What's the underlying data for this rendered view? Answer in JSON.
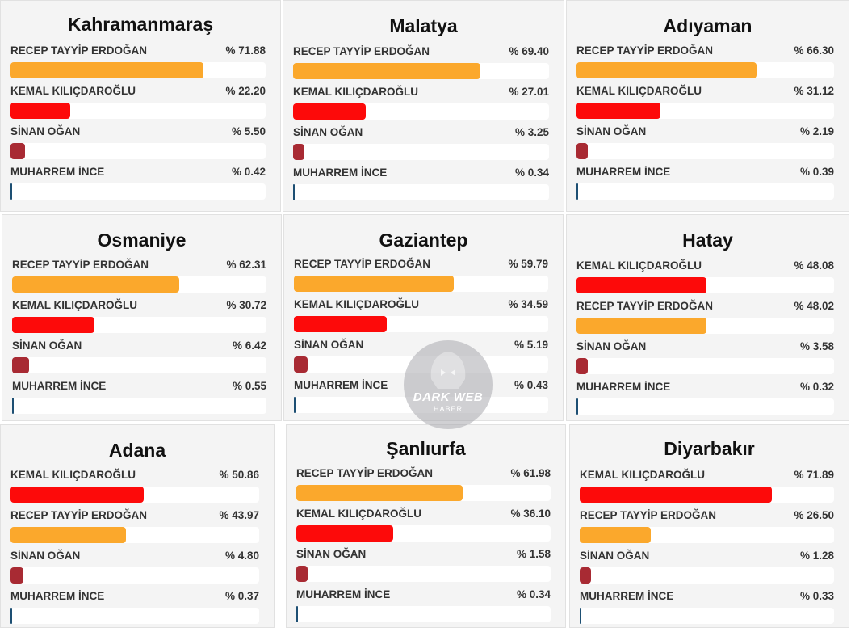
{
  "colors": {
    "RECEP TAYYİP ERDOĞAN": "#fba82c",
    "KEMAL KILIÇDAROĞLU": "#fd0a0a",
    "SİNAN OĞAN": "#a82a33",
    "MUHARREM İNCE": "#1d4f73"
  },
  "provinces": [
    {
      "name": "Kahramanmaraş",
      "rows": [
        {
          "candidate": "RECEP TAYYİP ERDOĞAN",
          "pct_label": "% 71.88",
          "value": 71.88
        },
        {
          "candidate": "KEMAL KILIÇDAROĞLU",
          "pct_label": "% 22.20",
          "value": 22.2
        },
        {
          "candidate": "SİNAN OĞAN",
          "pct_label": "% 5.50",
          "value": 5.5
        },
        {
          "candidate": "MUHARREM İNCE",
          "pct_label": "% 0.42",
          "value": 0.42
        }
      ]
    },
    {
      "name": "Malatya",
      "rows": [
        {
          "candidate": "RECEP TAYYİP ERDOĞAN",
          "pct_label": "% 69.40",
          "value": 69.4
        },
        {
          "candidate": "KEMAL KILIÇDAROĞLU",
          "pct_label": "% 27.01",
          "value": 27.01
        },
        {
          "candidate": "SİNAN OĞAN",
          "pct_label": "% 3.25",
          "value": 3.25
        },
        {
          "candidate": "MUHARREM İNCE",
          "pct_label": "% 0.34",
          "value": 0.34
        }
      ]
    },
    {
      "name": "Adıyaman",
      "rows": [
        {
          "candidate": "RECEP TAYYİP ERDOĞAN",
          "pct_label": "% 66.30",
          "value": 66.3
        },
        {
          "candidate": "KEMAL KILIÇDAROĞLU",
          "pct_label": "% 31.12",
          "value": 31.12
        },
        {
          "candidate": "SİNAN OĞAN",
          "pct_label": "% 2.19",
          "value": 2.19
        },
        {
          "candidate": "MUHARREM İNCE",
          "pct_label": "% 0.39",
          "value": 0.39
        }
      ]
    },
    {
      "name": "Osmaniye",
      "rows": [
        {
          "candidate": "RECEP TAYYİP ERDOĞAN",
          "pct_label": "% 62.31",
          "value": 62.31
        },
        {
          "candidate": "KEMAL KILIÇDAROĞLU",
          "pct_label": "% 30.72",
          "value": 30.72
        },
        {
          "candidate": "SİNAN OĞAN",
          "pct_label": "% 6.42",
          "value": 6.42
        },
        {
          "candidate": "MUHARREM İNCE",
          "pct_label": "% 0.55",
          "value": 0.55
        }
      ]
    },
    {
      "name": "Gaziantep",
      "rows": [
        {
          "candidate": "RECEP TAYYİP ERDOĞAN",
          "pct_label": "% 59.79",
          "value": 59.79
        },
        {
          "candidate": "KEMAL KILIÇDAROĞLU",
          "pct_label": "% 34.59",
          "value": 34.59
        },
        {
          "candidate": "SİNAN OĞAN",
          "pct_label": "% 5.19",
          "value": 5.19
        },
        {
          "candidate": "MUHARREM İNCE",
          "pct_label": "% 0.43",
          "value": 0.43
        }
      ]
    },
    {
      "name": "Hatay",
      "rows": [
        {
          "candidate": "KEMAL KILIÇDAROĞLU",
          "pct_label": "% 48.08",
          "value": 48.08
        },
        {
          "candidate": "RECEP TAYYİP ERDOĞAN",
          "pct_label": "% 48.02",
          "value": 48.02
        },
        {
          "candidate": "SİNAN OĞAN",
          "pct_label": "% 3.58",
          "value": 3.58
        },
        {
          "candidate": "MUHARREM İNCE",
          "pct_label": "% 0.32",
          "value": 0.32
        }
      ]
    },
    {
      "name": "Adana",
      "rows": [
        {
          "candidate": "KEMAL KILIÇDAROĞLU",
          "pct_label": "% 50.86",
          "value": 50.86
        },
        {
          "candidate": "RECEP TAYYİP ERDOĞAN",
          "pct_label": "% 43.97",
          "value": 43.97
        },
        {
          "candidate": "SİNAN OĞAN",
          "pct_label": "% 4.80",
          "value": 4.8
        },
        {
          "candidate": "MUHARREM İNCE",
          "pct_label": "% 0.37",
          "value": 0.37
        }
      ]
    },
    {
      "name": "Şanlıurfa",
      "rows": [
        {
          "candidate": "RECEP TAYYİP ERDOĞAN",
          "pct_label": "% 61.98",
          "value": 61.98
        },
        {
          "candidate": "KEMAL KILIÇDAROĞLU",
          "pct_label": "% 36.10",
          "value": 36.1
        },
        {
          "candidate": "SİNAN OĞAN",
          "pct_label": "% 1.58",
          "value": 1.58
        },
        {
          "candidate": "MUHARREM İNCE",
          "pct_label": "% 0.34",
          "value": 0.34
        }
      ]
    },
    {
      "name": "Diyarbakır",
      "rows": [
        {
          "candidate": "KEMAL KILIÇDAROĞLU",
          "pct_label": "% 71.89",
          "value": 71.89
        },
        {
          "candidate": "RECEP TAYYİP ERDOĞAN",
          "pct_label": "% 26.50",
          "value": 26.5
        },
        {
          "candidate": "SİNAN OĞAN",
          "pct_label": "% 1.28",
          "value": 1.28
        },
        {
          "candidate": "MUHARREM İNCE",
          "pct_label": "% 0.33",
          "value": 0.33
        }
      ]
    }
  ],
  "watermark": {
    "line1": "DARK WEB",
    "line2": "HABER"
  }
}
